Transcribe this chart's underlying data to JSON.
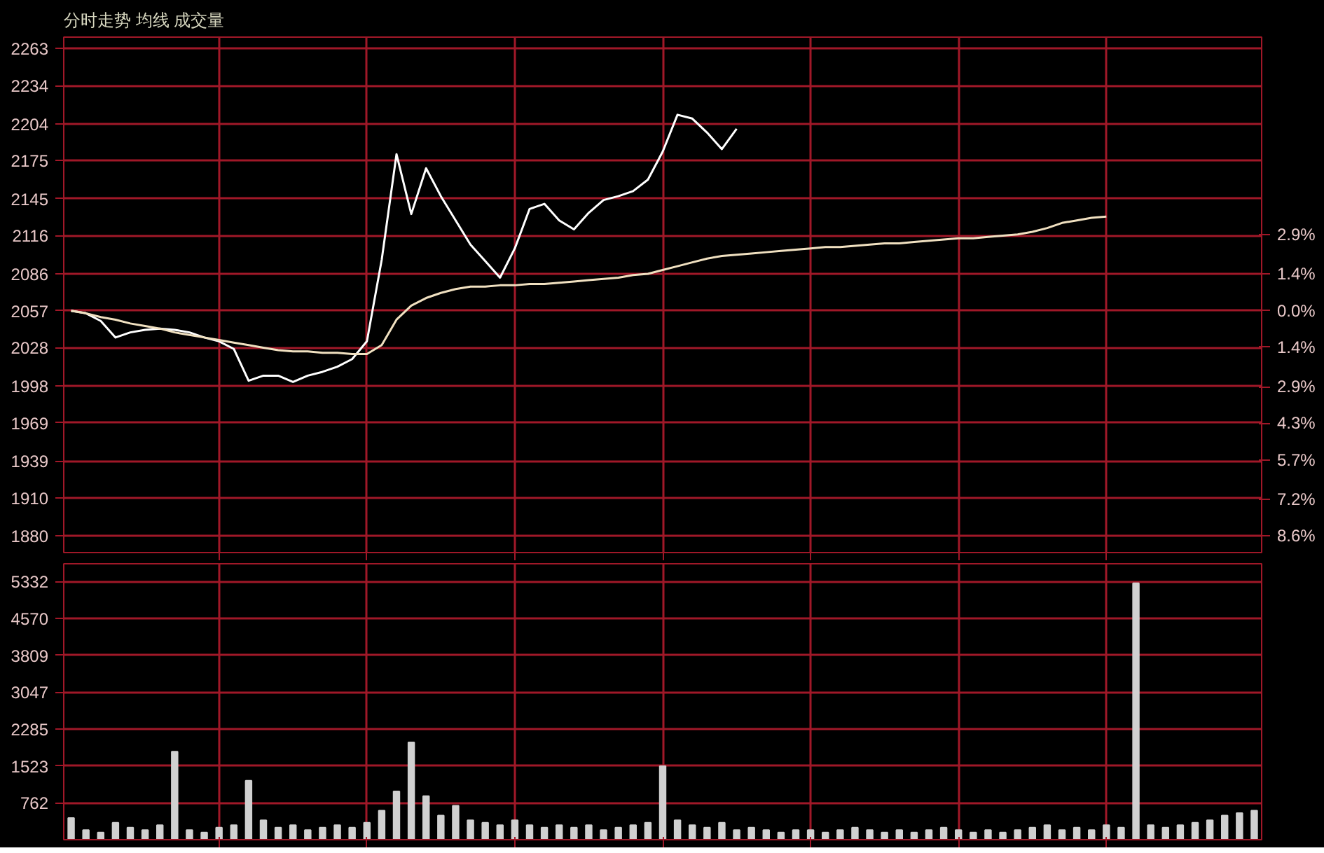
{
  "chart_data": [
    {
      "type": "line",
      "title": "分时走势 均线 成交量",
      "categories": [
        null,
        null,
        null,
        null,
        null,
        null,
        null,
        null,
        null,
        null,
        null,
        null,
        null,
        null,
        null,
        null,
        null,
        null,
        null,
        null,
        null,
        null,
        null,
        null,
        null,
        null,
        null,
        null,
        null,
        null,
        null,
        null,
        null,
        null,
        null,
        null,
        null,
        null,
        null,
        null,
        null,
        null,
        null,
        null,
        null,
        null,
        null,
        null,
        null,
        null,
        null,
        null,
        null,
        null,
        null,
        null,
        null,
        null,
        null,
        null,
        null,
        null,
        null,
        null,
        null,
        null,
        null,
        null,
        null,
        null,
        null,
        null,
        null,
        null,
        null,
        null,
        null,
        null,
        null,
        null,
        null
      ],
      "ylim": [
        1867,
        2272
      ],
      "yticks": [
        1880,
        1910,
        1939,
        1969,
        1998,
        2028,
        2057,
        2086,
        2116,
        2145,
        2175,
        2204,
        2234,
        2263
      ],
      "y2lim": [
        -9.24,
        10.45
      ],
      "y2ticks": [
        {
          "value": 2.9,
          "label": "2.9%"
        },
        {
          "value": 1.4,
          "label": "1.4%"
        },
        {
          "value": 0,
          "label": "0.0%"
        },
        {
          "value": -1.4,
          "label": "1.4%"
        },
        {
          "value": -2.9,
          "label": "2.9%"
        },
        {
          "value": -4.3,
          "label": "4.3%"
        },
        {
          "value": -5.7,
          "label": "5.7%"
        },
        {
          "value": -7.2,
          "label": "7.2%"
        },
        {
          "value": -8.6,
          "label": "8.6%"
        }
      ],
      "grid": true,
      "marker": "none",
      "line_style": "solid",
      "series": [
        {
          "color": "#ffffff",
          "values": [
            2057,
            2055,
            2049,
            2036,
            2040,
            2042,
            2043,
            2042,
            2040,
            2036,
            2033,
            2027,
            2002,
            2006,
            2006,
            2001,
            2006,
            2009,
            2013,
            2019,
            2033,
            2097,
            2180,
            2133,
            2169,
            2147,
            2128,
            2109,
            2096,
            2083,
            2106,
            2137,
            2141,
            2128,
            2121,
            2134,
            2144,
            2147,
            2151,
            2160,
            2182,
            2211,
            2208,
            2197,
            2184,
            2200,
            null,
            null,
            null,
            null,
            null,
            null,
            null,
            null,
            null,
            null,
            null,
            null,
            null,
            null,
            null,
            null,
            null,
            null,
            null,
            null,
            null,
            null,
            null,
            null,
            null,
            null,
            null,
            null,
            null,
            null,
            null,
            null,
            null,
            null,
            null
          ]
        },
        {
          "color": "#f0e0c0",
          "values": [
            2057,
            2055,
            2052,
            2050,
            2047,
            2045,
            2043,
            2040,
            2038,
            2036,
            2034,
            2032,
            2030,
            2028,
            2026,
            2025,
            2025,
            2024,
            2024,
            2023,
            2023,
            2030,
            2050,
            2061,
            2067,
            2071,
            2074,
            2076,
            2076,
            2077,
            2077,
            2078,
            2078,
            2079,
            2080,
            2081,
            2082,
            2083,
            2085,
            2086,
            2089,
            2092,
            2095,
            2098,
            2100,
            2101,
            2102,
            2103,
            2104,
            2105,
            2106,
            2107,
            2107,
            2108,
            2109,
            2110,
            2110,
            2111,
            2112,
            2113,
            2114,
            2114,
            2115,
            2116,
            2117,
            2119,
            2122,
            2126,
            2128,
            2130,
            2131,
            null,
            null,
            null,
            null,
            null,
            null,
            null,
            null,
            null,
            null
          ]
        }
      ]
    },
    {
      "type": "bar",
      "color": "#d0d0d0",
      "categories": [
        null,
        null,
        null,
        null,
        null,
        null,
        null,
        null,
        null,
        null,
        null,
        null,
        null,
        null,
        null,
        null,
        null,
        null,
        null,
        null,
        null,
        null,
        null,
        null,
        null,
        null,
        null,
        null,
        null,
        null,
        null,
        null,
        null,
        null,
        null,
        null,
        null,
        null,
        null,
        null,
        null,
        null,
        null,
        null,
        null,
        null,
        null,
        null,
        null,
        null,
        null,
        null,
        null,
        null,
        null,
        null,
        null,
        null,
        null,
        null,
        null,
        null,
        null,
        null,
        null,
        null,
        null,
        null,
        null,
        null,
        null,
        null,
        null,
        null,
        null,
        null,
        null,
        null,
        null,
        null,
        null
      ],
      "ylim": [
        0,
        5700
      ],
      "yticks": [
        762,
        1523,
        2285,
        3047,
        3809,
        4570,
        5332
      ],
      "grid": true,
      "values": [
        450,
        200,
        150,
        350,
        250,
        200,
        300,
        1820,
        200,
        150,
        250,
        300,
        1220,
        400,
        250,
        300,
        200,
        250,
        300,
        250,
        350,
        600,
        1000,
        2010,
        900,
        500,
        700,
        400,
        350,
        300,
        400,
        300,
        250,
        300,
        250,
        300,
        200,
        250,
        300,
        350,
        1520,
        400,
        300,
        250,
        350,
        200,
        250,
        200,
        150,
        200,
        200,
        150,
        200,
        250,
        200,
        150,
        200,
        150,
        200,
        250,
        200,
        150,
        200,
        150,
        200,
        250,
        300,
        200,
        250,
        200,
        300,
        250,
        5300,
        300,
        250,
        300,
        350,
        400,
        500,
        550,
        600
      ]
    }
  ]
}
